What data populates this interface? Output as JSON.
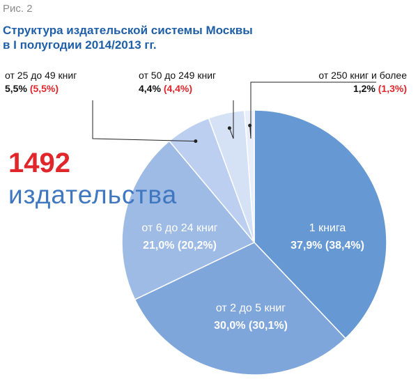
{
  "figure_label": "Рис. 2",
  "title_lines": [
    "Структура издательской системы Москвы",
    "в I полугодии 2014/2013 гг."
  ],
  "total": {
    "value": "1492",
    "label": "издательства"
  },
  "chart_data": {
    "type": "pie",
    "title": "Структура издательской системы Москвы в I полугодии 2014/2013 гг.",
    "slices": [
      {
        "label": "1 книга",
        "value": 37.9,
        "value_text": "37,9%",
        "prev_text": "(38,4%)",
        "color": "#6699d3"
      },
      {
        "label": "от 2 до 5 книг",
        "value": 30.0,
        "value_text": "30,0%",
        "prev_text": "(30,1%)",
        "color": "#7fa6da"
      },
      {
        "label": "от 6 до 24 книг",
        "value": 21.0,
        "value_text": "21,0%",
        "prev_text": "(20,2%)",
        "color": "#9dbbe4"
      },
      {
        "label": "от 25 до 49 книг",
        "value": 5.5,
        "value_text": "5,5%",
        "prev_text": "(5,5%)",
        "color": "#bccff0"
      },
      {
        "label": "от 50 до 249 книг",
        "value": 4.4,
        "value_text": "4,4%",
        "prev_text": "(4,4%)",
        "color": "#d5e1f5"
      },
      {
        "label": "от 250 книг и более",
        "value": 1.2,
        "value_text": "1,2%",
        "prev_text": "(1,3%)",
        "color": "#e9effa"
      }
    ]
  }
}
